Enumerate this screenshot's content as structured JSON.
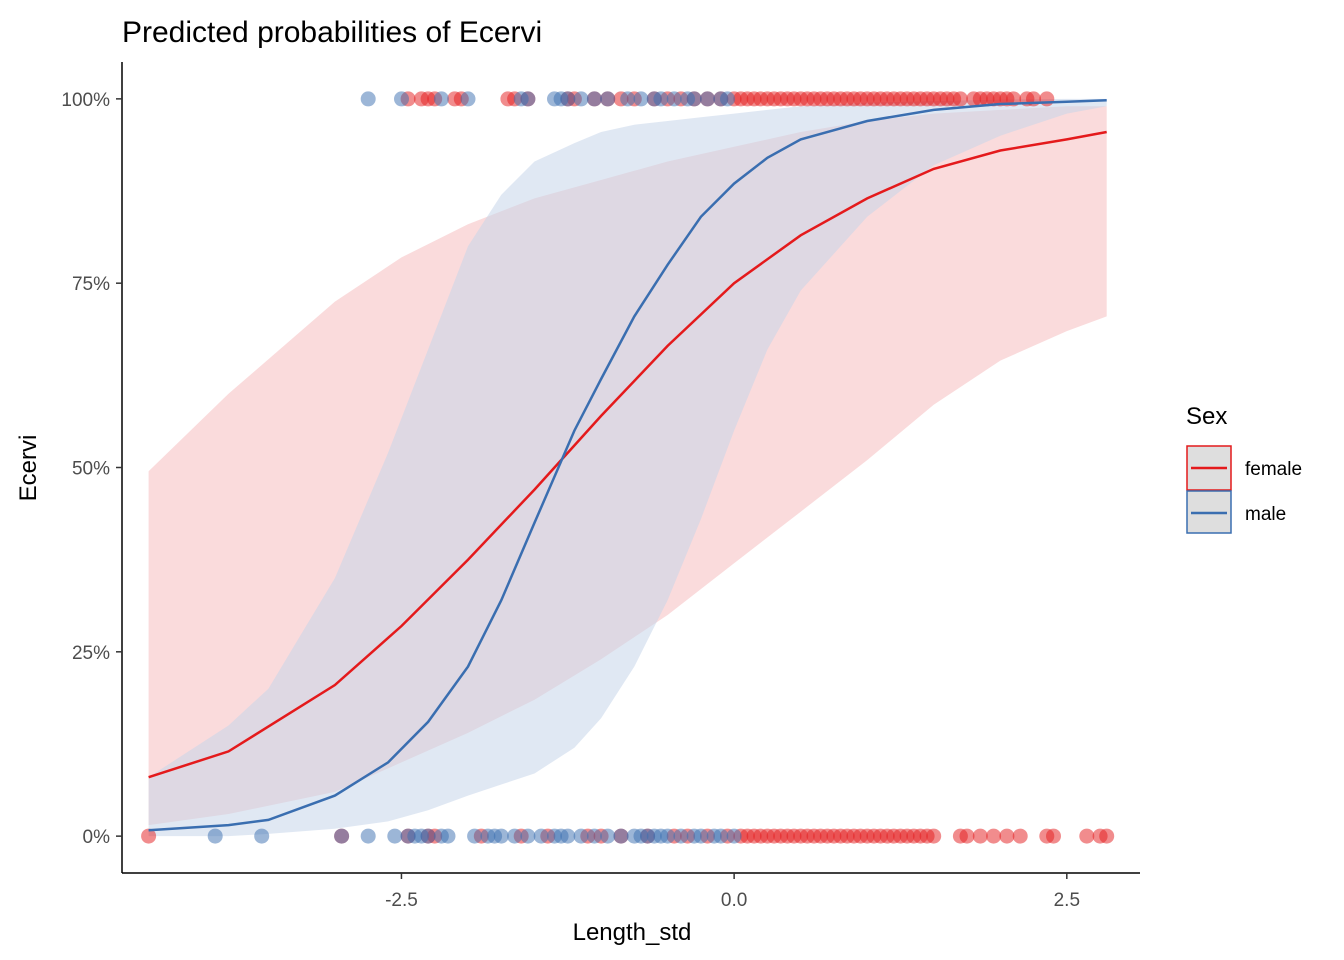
{
  "chart_data": {
    "type": "line",
    "title": "Predicted probabilities of Ecervi",
    "xlabel": "Length_std",
    "ylabel": "Ecervi",
    "xlim": [
      -4.6,
      3.05
    ],
    "ylim": [
      -0.05,
      1.05
    ],
    "x_ticks": [
      -2.5,
      0.0,
      2.5
    ],
    "x_tick_labels": [
      "-2.5",
      "0.0",
      "2.5"
    ],
    "y_ticks": [
      0,
      0.25,
      0.5,
      0.75,
      1.0
    ],
    "y_tick_labels": [
      "0%",
      "25%",
      "50%",
      "75%",
      "100%"
    ],
    "grid": false,
    "legend": {
      "title": "Sex",
      "position": "right"
    },
    "series": [
      {
        "name": "female",
        "color": "#E41A1C",
        "ribbon_color": "#F8C8CA",
        "x": [
          -4.4,
          -3.8,
          -3.0,
          -2.5,
          -2.0,
          -1.5,
          -1.0,
          -0.5,
          0.0,
          0.5,
          1.0,
          1.5,
          2.0,
          2.5,
          2.8
        ],
        "y": [
          0.08,
          0.115,
          0.205,
          0.285,
          0.375,
          0.47,
          0.57,
          0.665,
          0.75,
          0.815,
          0.865,
          0.905,
          0.93,
          0.945,
          0.955
        ],
        "lower": [
          0.015,
          0.03,
          0.06,
          0.1,
          0.14,
          0.185,
          0.24,
          0.3,
          0.37,
          0.44,
          0.51,
          0.585,
          0.645,
          0.685,
          0.705
        ],
        "upper": [
          0.495,
          0.6,
          0.725,
          0.785,
          0.83,
          0.865,
          0.89,
          0.915,
          0.935,
          0.955,
          0.97,
          0.98,
          0.985,
          0.99,
          0.99
        ],
        "points_at_1": [
          -2.45,
          -2.35,
          -2.3,
          -2.25,
          -2.1,
          -2.05,
          -1.7,
          -1.65,
          -1.55,
          -1.25,
          -1.2,
          -1.05,
          -0.95,
          -0.85,
          -0.75,
          -0.6,
          -0.5,
          -0.4,
          -0.3,
          -0.2,
          -0.1,
          0.0,
          0.05,
          0.1,
          0.15,
          0.2,
          0.25,
          0.3,
          0.35,
          0.4,
          0.45,
          0.5,
          0.55,
          0.6,
          0.65,
          0.7,
          0.75,
          0.8,
          0.85,
          0.9,
          0.95,
          1.0,
          1.05,
          1.1,
          1.15,
          1.2,
          1.25,
          1.3,
          1.35,
          1.4,
          1.45,
          1.5,
          1.55,
          1.6,
          1.65,
          1.7,
          1.8,
          1.85,
          1.9,
          1.95,
          2.0,
          2.05,
          2.1,
          2.2,
          2.25,
          2.35
        ],
        "points_at_0": [
          -4.4,
          -2.95,
          -2.45,
          -2.3,
          -2.25,
          -1.9,
          -1.6,
          -1.4,
          -1.1,
          -1.0,
          -0.85,
          -0.65,
          -0.45,
          -0.35,
          -0.2,
          -0.05,
          0.05,
          0.1,
          0.15,
          0.2,
          0.25,
          0.3,
          0.35,
          0.4,
          0.45,
          0.5,
          0.55,
          0.6,
          0.65,
          0.7,
          0.75,
          0.8,
          0.85,
          0.9,
          0.95,
          1.0,
          1.05,
          1.1,
          1.15,
          1.2,
          1.25,
          1.3,
          1.35,
          1.4,
          1.45,
          1.5,
          1.7,
          1.75,
          1.85,
          1.95,
          2.05,
          2.15,
          2.35,
          2.4,
          2.65,
          2.75,
          2.8
        ]
      },
      {
        "name": "male",
        "color": "#3A6EB0",
        "ribbon_color": "#C6D6EA",
        "x": [
          -4.4,
          -3.8,
          -3.5,
          -3.0,
          -2.6,
          -2.3,
          -2.0,
          -1.75,
          -1.5,
          -1.2,
          -1.0,
          -0.75,
          -0.5,
          -0.25,
          0.0,
          0.25,
          0.5,
          1.0,
          1.5,
          2.0,
          2.5,
          2.8
        ],
        "y": [
          0.008,
          0.015,
          0.022,
          0.055,
          0.1,
          0.155,
          0.23,
          0.32,
          0.425,
          0.55,
          0.62,
          0.705,
          0.775,
          0.84,
          0.885,
          0.92,
          0.945,
          0.97,
          0.985,
          0.993,
          0.996,
          0.998
        ],
        "lower": [
          0.0,
          0.0,
          0.003,
          0.01,
          0.02,
          0.035,
          0.055,
          0.07,
          0.085,
          0.12,
          0.16,
          0.23,
          0.32,
          0.43,
          0.55,
          0.66,
          0.74,
          0.84,
          0.91,
          0.95,
          0.98,
          0.99
        ],
        "upper": [
          0.08,
          0.15,
          0.2,
          0.35,
          0.52,
          0.66,
          0.8,
          0.87,
          0.915,
          0.94,
          0.955,
          0.965,
          0.97,
          0.975,
          0.98,
          0.985,
          0.99,
          0.995,
          0.997,
          0.999,
          1.0,
          1.0
        ],
        "points_at_1": [
          -2.75,
          -2.5,
          -2.2,
          -2.0,
          -1.6,
          -1.55,
          -1.35,
          -1.3,
          -1.25,
          -1.15,
          -1.05,
          -0.95,
          -0.8,
          -0.7,
          -0.6,
          -0.55,
          -0.45,
          -0.35,
          -0.3,
          -0.2,
          -0.1,
          -0.05
        ],
        "points_at_0": [
          -3.9,
          -3.55,
          -2.95,
          -2.75,
          -2.55,
          -2.45,
          -2.4,
          -2.35,
          -2.3,
          -2.2,
          -2.15,
          -1.95,
          -1.85,
          -1.8,
          -1.75,
          -1.65,
          -1.55,
          -1.45,
          -1.35,
          -1.3,
          -1.25,
          -1.15,
          -1.05,
          -0.95,
          -0.85,
          -0.75,
          -0.7,
          -0.65,
          -0.6,
          -0.55,
          -0.5,
          -0.4,
          -0.3,
          -0.25,
          -0.15,
          -0.1,
          0.0
        ]
      }
    ]
  }
}
